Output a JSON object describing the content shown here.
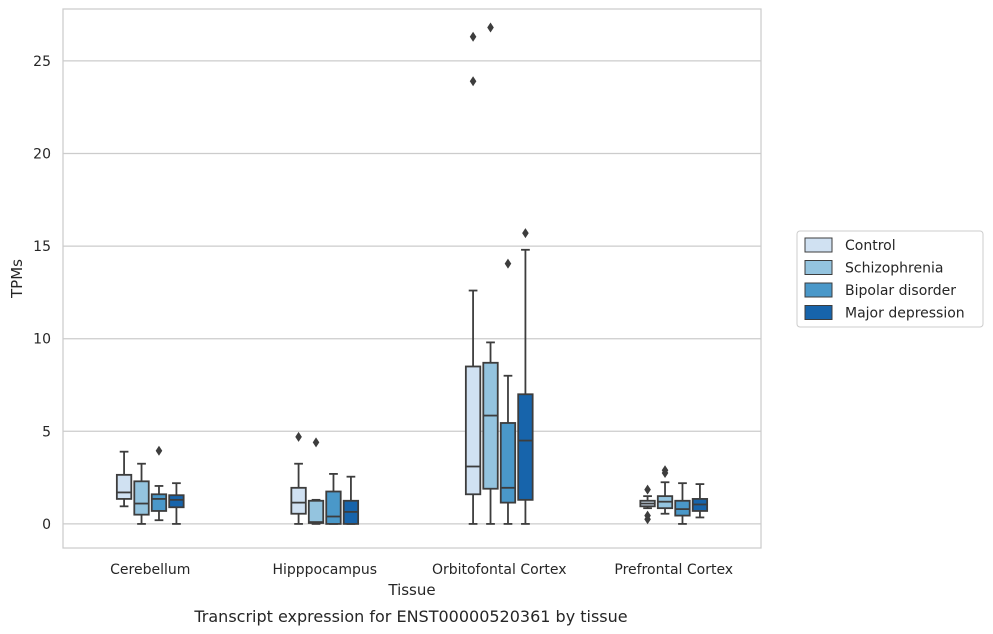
{
  "chart_data": {
    "type": "box",
    "title": "Transcript expression for ENST00000520361 by tissue",
    "xlabel": "Tissue",
    "ylabel": "TPMs",
    "ylim": [
      -1.3,
      27.8
    ],
    "yticks": [
      0,
      5,
      10,
      15,
      20,
      25
    ],
    "grid": "horizontal",
    "legend_position": "right",
    "categories": [
      "Cerebellum",
      "Hipppocampus",
      "Orbitofontal Cortex",
      "Prefrontal Cortex"
    ],
    "series": [
      {
        "name": "Control",
        "color": "#d0e1f2",
        "boxes": [
          {
            "whisker_low": 0.95,
            "q1": 1.35,
            "median": 1.7,
            "q3": 2.65,
            "whisker_high": 3.9,
            "outliers": []
          },
          {
            "whisker_low": 0.0,
            "q1": 0.55,
            "median": 1.15,
            "q3": 1.95,
            "whisker_high": 3.25,
            "outliers": [
              4.7
            ]
          },
          {
            "whisker_low": 0.0,
            "q1": 1.6,
            "median": 3.1,
            "q3": 8.5,
            "whisker_high": 12.6,
            "outliers": [
              23.9,
              26.3
            ]
          },
          {
            "whisker_low": 0.85,
            "q1": 0.95,
            "median": 1.1,
            "q3": 1.25,
            "whisker_high": 1.5,
            "outliers": [
              1.85,
              0.45,
              0.25
            ]
          }
        ]
      },
      {
        "name": "Schizophrenia",
        "color": "#94c4df",
        "boxes": [
          {
            "whisker_low": 0.0,
            "q1": 0.5,
            "median": 1.1,
            "q3": 2.3,
            "whisker_high": 3.25,
            "outliers": []
          },
          {
            "whisker_low": 0.0,
            "q1": 0.05,
            "median": 0.1,
            "q3": 1.25,
            "whisker_high": 1.3,
            "outliers": [
              4.4
            ]
          },
          {
            "whisker_low": 0.0,
            "q1": 1.9,
            "median": 5.85,
            "q3": 8.7,
            "whisker_high": 9.8,
            "outliers": [
              26.8
            ]
          },
          {
            "whisker_low": 0.55,
            "q1": 0.85,
            "median": 1.2,
            "q3": 1.5,
            "whisker_high": 2.25,
            "outliers": [
              2.75,
              2.9
            ]
          }
        ]
      },
      {
        "name": "Bipolar disorder",
        "color": "#4a98c9",
        "boxes": [
          {
            "whisker_low": 0.2,
            "q1": 0.7,
            "median": 1.35,
            "q3": 1.6,
            "whisker_high": 2.05,
            "outliers": [
              3.95
            ]
          },
          {
            "whisker_low": 0.0,
            "q1": 0.0,
            "median": 0.4,
            "q3": 1.75,
            "whisker_high": 2.7,
            "outliers": []
          },
          {
            "whisker_low": 0.0,
            "q1": 1.15,
            "median": 1.95,
            "q3": 5.45,
            "whisker_high": 8.0,
            "outliers": [
              14.05
            ]
          },
          {
            "whisker_low": 0.0,
            "q1": 0.45,
            "median": 0.8,
            "q3": 1.25,
            "whisker_high": 2.2,
            "outliers": []
          }
        ]
      },
      {
        "name": "Major depression",
        "color": "#1764ab",
        "boxes": [
          {
            "whisker_low": 0.0,
            "q1": 0.9,
            "median": 1.3,
            "q3": 1.55,
            "whisker_high": 2.2,
            "outliers": []
          },
          {
            "whisker_low": 0.0,
            "q1": 0.0,
            "median": 0.65,
            "q3": 1.25,
            "whisker_high": 2.55,
            "outliers": []
          },
          {
            "whisker_low": 0.0,
            "q1": 1.3,
            "median": 4.5,
            "q3": 7.0,
            "whisker_high": 14.8,
            "outliers": [
              15.7
            ]
          },
          {
            "whisker_low": 0.35,
            "q1": 0.7,
            "median": 1.05,
            "q3": 1.35,
            "whisker_high": 2.15,
            "outliers": []
          }
        ]
      }
    ]
  }
}
